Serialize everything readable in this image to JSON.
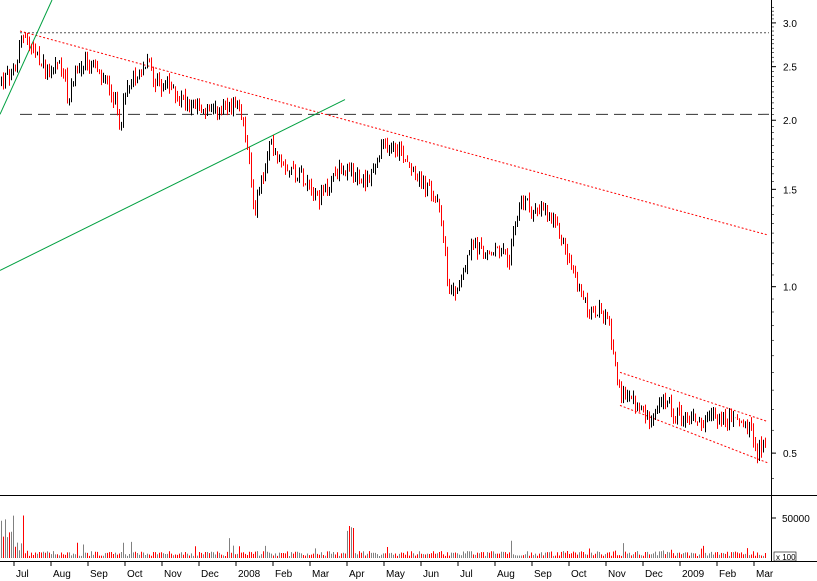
{
  "chart_data": {
    "type": "candlestick",
    "price_scale": "log",
    "ylim": [
      0.42,
      3.3
    ],
    "y_ticks": [
      {
        "value": 3.0,
        "label": "3.0"
      },
      {
        "value": 2.5,
        "label": "2.5"
      },
      {
        "value": 2.0,
        "label": "2.0"
      },
      {
        "value": 1.5,
        "label": "1.5"
      },
      {
        "value": 1.0,
        "label": "1.0"
      },
      {
        "value": 0.5,
        "label": "0.5"
      }
    ],
    "x_labels": [
      "Jul",
      "Aug",
      "Sep",
      "Oct",
      "Nov",
      "Dec",
      "2008",
      "Feb",
      "Mar",
      "Apr",
      "May",
      "Jun",
      "Jul",
      "Aug",
      "Sep",
      "Oct",
      "Nov",
      "Dec",
      "2009",
      "Feb",
      "Mar"
    ],
    "price_path": [
      [
        0,
        2.35
      ],
      [
        8,
        2.4
      ],
      [
        16,
        2.45
      ],
      [
        20,
        2.9
      ],
      [
        26,
        2.78
      ],
      [
        32,
        2.65
      ],
      [
        40,
        2.55
      ],
      [
        48,
        2.45
      ],
      [
        56,
        2.55
      ],
      [
        64,
        2.48
      ],
      [
        68,
        2.05
      ],
      [
        72,
        2.4
      ],
      [
        80,
        2.5
      ],
      [
        90,
        2.55
      ],
      [
        100,
        2.38
      ],
      [
        110,
        2.3
      ],
      [
        120,
        2.0
      ],
      [
        128,
        2.35
      ],
      [
        140,
        2.45
      ],
      [
        148,
        2.55
      ],
      [
        156,
        2.35
      ],
      [
        168,
        2.3
      ],
      [
        180,
        2.2
      ],
      [
        190,
        2.15
      ],
      [
        200,
        2.1
      ],
      [
        212,
        2.05
      ],
      [
        222,
        2.08
      ],
      [
        232,
        2.12
      ],
      [
        240,
        2.05
      ],
      [
        246,
        1.85
      ],
      [
        250,
        1.6
      ],
      [
        254,
        1.35
      ],
      [
        258,
        1.5
      ],
      [
        264,
        1.6
      ],
      [
        270,
        1.82
      ],
      [
        276,
        1.75
      ],
      [
        284,
        1.68
      ],
      [
        292,
        1.62
      ],
      [
        300,
        1.6
      ],
      [
        310,
        1.55
      ],
      [
        318,
        1.45
      ],
      [
        326,
        1.5
      ],
      [
        334,
        1.6
      ],
      [
        342,
        1.64
      ],
      [
        352,
        1.6
      ],
      [
        362,
        1.56
      ],
      [
        372,
        1.6
      ],
      [
        380,
        1.75
      ],
      [
        388,
        1.82
      ],
      [
        396,
        1.8
      ],
      [
        404,
        1.72
      ],
      [
        412,
        1.65
      ],
      [
        420,
        1.55
      ],
      [
        428,
        1.5
      ],
      [
        434,
        1.45
      ],
      [
        440,
        1.35
      ],
      [
        444,
        1.2
      ],
      [
        448,
        1.0
      ],
      [
        454,
        0.98
      ],
      [
        460,
        1.02
      ],
      [
        466,
        1.1
      ],
      [
        472,
        1.2
      ],
      [
        478,
        1.18
      ],
      [
        484,
        1.15
      ],
      [
        490,
        1.12
      ],
      [
        496,
        1.18
      ],
      [
        502,
        1.15
      ],
      [
        508,
        1.1
      ],
      [
        512,
        1.2
      ],
      [
        516,
        1.3
      ],
      [
        520,
        1.45
      ],
      [
        526,
        1.42
      ],
      [
        532,
        1.38
      ],
      [
        538,
        1.35
      ],
      [
        544,
        1.38
      ],
      [
        550,
        1.32
      ],
      [
        556,
        1.28
      ],
      [
        562,
        1.22
      ],
      [
        568,
        1.12
      ],
      [
        574,
        1.05
      ],
      [
        580,
        0.98
      ],
      [
        586,
        0.92
      ],
      [
        592,
        0.88
      ],
      [
        598,
        0.9
      ],
      [
        604,
        0.88
      ],
      [
        608,
        0.85
      ],
      [
        612,
        0.8
      ],
      [
        616,
        0.7
      ],
      [
        620,
        0.62
      ],
      [
        626,
        0.65
      ],
      [
        632,
        0.62
      ],
      [
        640,
        0.6
      ],
      [
        648,
        0.58
      ],
      [
        656,
        0.6
      ],
      [
        664,
        0.62
      ],
      [
        670,
        0.6
      ],
      [
        676,
        0.59
      ],
      [
        684,
        0.58
      ],
      [
        692,
        0.58
      ],
      [
        700,
        0.57
      ],
      [
        706,
        0.56
      ],
      [
        712,
        0.59
      ],
      [
        718,
        0.58
      ],
      [
        726,
        0.57
      ],
      [
        734,
        0.58
      ],
      [
        740,
        0.57
      ],
      [
        746,
        0.56
      ],
      [
        752,
        0.54
      ],
      [
        756,
        0.5
      ],
      [
        760,
        0.52
      ],
      [
        766,
        0.51
      ]
    ],
    "lines": [
      {
        "kind": "horizontal",
        "style": "dotted",
        "color": "#555555",
        "value": 2.88
      },
      {
        "kind": "horizontal",
        "style": "dashed",
        "color": "#333333",
        "value": 2.05
      },
      {
        "kind": "trend",
        "style": "dotted",
        "color": "#ff0000",
        "from": [
          20,
          2.9
        ],
        "to": [
          768,
          1.24
        ]
      },
      {
        "kind": "trend",
        "style": "solid",
        "color": "#00a040",
        "from": [
          0,
          1.07
        ],
        "to": [
          345,
          2.18
        ]
      },
      {
        "kind": "trend",
        "style": "solid",
        "color": "#00a040",
        "from": [
          0,
          2.05
        ],
        "to": [
          52,
          3.3
        ]
      },
      {
        "kind": "trend",
        "style": "dotted",
        "color": "#ff0000",
        "from": [
          620,
          0.7
        ],
        "to": [
          768,
          0.57
        ]
      },
      {
        "kind": "trend",
        "style": "dotted",
        "color": "#ff0000",
        "from": [
          620,
          0.61
        ],
        "to": [
          768,
          0.48
        ]
      }
    ],
    "volume": {
      "y_tick": {
        "value": 50000,
        "label": "50000"
      },
      "unit_label": "x 100"
    },
    "colors": {
      "up": "#000000",
      "down": "#ff0000",
      "volume_up": "#808080",
      "volume_down": "#ff0000"
    }
  }
}
